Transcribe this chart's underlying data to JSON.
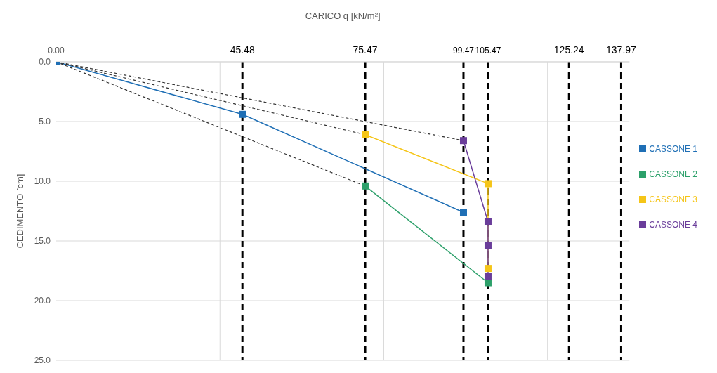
{
  "chart_data": {
    "type": "line",
    "xlabel": "CARICO q [kN/m²]",
    "ylabel": "CEDIMENTO [cm]",
    "xlim": [
      0,
      140
    ],
    "xticks": [
      {
        "value": 0,
        "label": "0.00"
      },
      45.48,
      75.47,
      99.47,
      105.47,
      125.24,
      137.97
    ],
    "ylim": [
      25,
      0
    ],
    "yticks": [
      {
        "value": 0,
        "label": "0.0"
      },
      {
        "value": 5,
        "label": "5.0"
      },
      {
        "value": 10,
        "label": "10.0"
      },
      {
        "value": 15,
        "label": "15.0"
      },
      {
        "value": 20,
        "label": "20.0"
      },
      {
        "value": 25,
        "label": "25.0"
      }
    ],
    "grid": "y",
    "legend": "right",
    "marker": "square",
    "line_style": "solid",
    "series": [
      {
        "name": "CASSONE 1",
        "color": "#1f6fb5",
        "x": [
          0,
          45.48,
          99.47
        ],
        "values": [
          0,
          4.4,
          12.6
        ]
      },
      {
        "name": "CASSONE 2",
        "color": "#2ca06a",
        "x": [
          75.47,
          105.47
        ],
        "values": [
          10.4,
          18.5
        ]
      },
      {
        "name": "CASSONE 3",
        "color": "#f5c518",
        "x": [
          75.47,
          105.47,
          105.47
        ],
        "values": [
          6.1,
          10.2,
          17.3
        ]
      },
      {
        "name": "CASSONE 4",
        "color": "#6a3d9a",
        "x": [
          99.47,
          105.47,
          105.47,
          105.47
        ],
        "values": [
          6.6,
          13.4,
          15.4,
          18.0
        ]
      },
      {
        "type": "line",
        "color": "#333333",
        "line_style": "dashed",
        "marker": "none",
        "x": [
          0,
          99.47
        ],
        "values": [
          0,
          6.6
        ]
      },
      {
        "type": "line",
        "color": "#333333",
        "line_style": "dashed",
        "marker": "none",
        "x": [
          0,
          75.47
        ],
        "values": [
          0,
          6.1
        ]
      },
      {
        "type": "line",
        "color": "#333333",
        "line_style": "dashed",
        "marker": "none",
        "x": [
          0,
          75.47
        ],
        "values": [
          0,
          10.4
        ]
      }
    ],
    "ref_lines": [
      {
        "axis": "x",
        "value": 40,
        "color": "#d9d9d9",
        "line_style": "solid"
      },
      {
        "axis": "x",
        "value": 80,
        "color": "#d9d9d9",
        "line_style": "solid"
      },
      {
        "axis": "x",
        "value": 120,
        "color": "#d9d9d9",
        "line_style": "solid"
      },
      {
        "axis": "x",
        "value": 45.48,
        "color": "#000000",
        "line_style": "dashed"
      },
      {
        "axis": "x",
        "value": 75.47,
        "color": "#000000",
        "line_style": "dashed"
      },
      {
        "axis": "x",
        "value": 99.47,
        "color": "#000000",
        "line_style": "dashed"
      },
      {
        "axis": "x",
        "value": 105.47,
        "color": "#000000",
        "line_style": "dashed"
      },
      {
        "axis": "x",
        "value": 125.24,
        "color": "#000000",
        "line_style": "dashed"
      },
      {
        "axis": "x",
        "value": 137.97,
        "color": "#000000",
        "line_style": "dashed"
      }
    ]
  }
}
